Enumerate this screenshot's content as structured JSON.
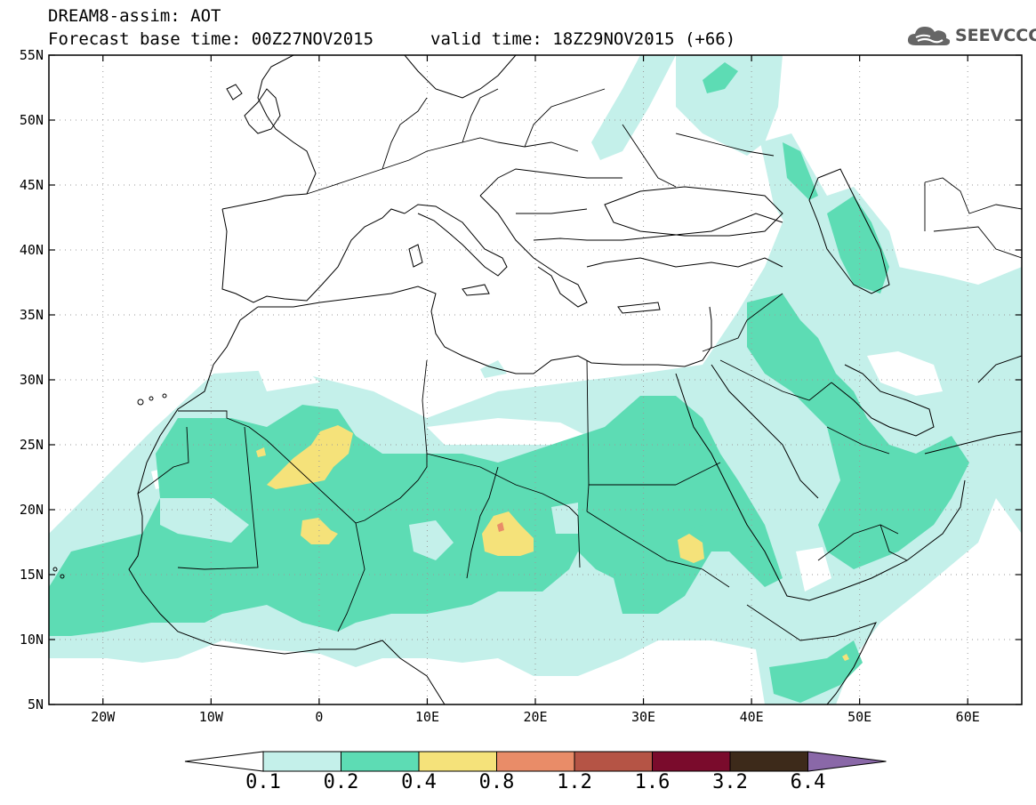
{
  "header": {
    "title": "DREAM8-assim: AOT",
    "base_time": "Forecast base time: 00Z27NOV2015",
    "valid_time": "valid time: 18Z29NOV2015 (+66)"
  },
  "logo": {
    "text": "SEEVCCC",
    "icon": "cloud-icon"
  },
  "map": {
    "lon_range": [
      -25,
      65
    ],
    "lat_range": [
      5,
      55
    ],
    "x_ticks": [
      {
        "value": -20,
        "label": "20W"
      },
      {
        "value": -10,
        "label": "10W"
      },
      {
        "value": 0,
        "label": "0"
      },
      {
        "value": 10,
        "label": "10E"
      },
      {
        "value": 20,
        "label": "20E"
      },
      {
        "value": 30,
        "label": "30E"
      },
      {
        "value": 40,
        "label": "40E"
      },
      {
        "value": 50,
        "label": "50E"
      },
      {
        "value": 60,
        "label": "60E"
      }
    ],
    "y_ticks": [
      {
        "value": 55,
        "label": "55N"
      },
      {
        "value": 50,
        "label": "50N"
      },
      {
        "value": 45,
        "label": "45N"
      },
      {
        "value": 40,
        "label": "40N"
      },
      {
        "value": 35,
        "label": "35N"
      },
      {
        "value": 30,
        "label": "30N"
      },
      {
        "value": 25,
        "label": "25N"
      },
      {
        "value": 20,
        "label": "20N"
      },
      {
        "value": 15,
        "label": "15N"
      },
      {
        "value": 10,
        "label": "10N"
      },
      {
        "value": 5,
        "label": "5N"
      }
    ],
    "grid": "dotted"
  },
  "colorbar": {
    "levels": [
      "0.1",
      "0.2",
      "0.4",
      "0.8",
      "1.2",
      "1.6",
      "3.2",
      "6.4"
    ],
    "colors": [
      "#c4f0ea",
      "#5ddcb4",
      "#f5e27a",
      "#e98c68",
      "#b55445",
      "#7a0b2c",
      "#3d2a1a",
      "#8a68a8"
    ],
    "under_color": "#ffffff"
  },
  "colors": {
    "aot_0_1": "#c4f0ea",
    "aot_0_2": "#5ddcb4",
    "aot_0_4": "#f5e27a",
    "aot_0_8": "#e98c68"
  }
}
